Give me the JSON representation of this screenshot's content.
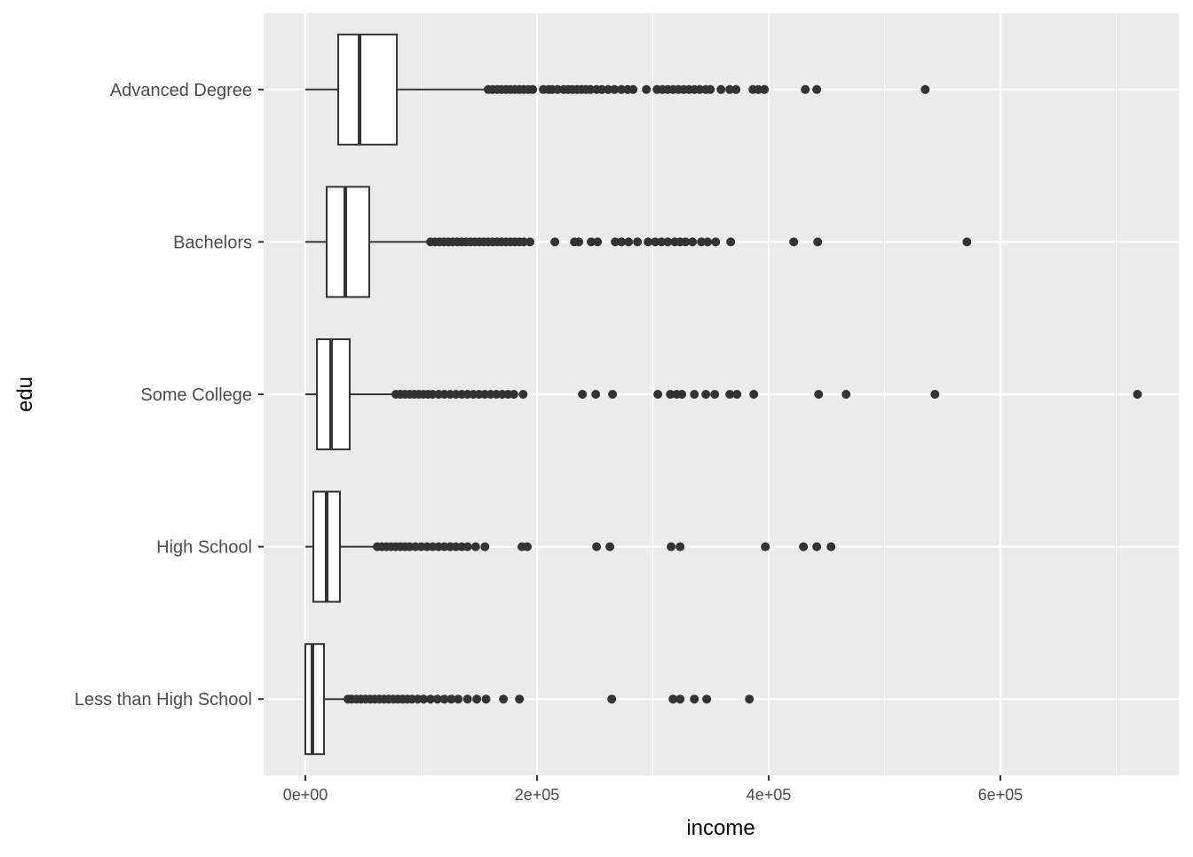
{
  "chart_data": {
    "type": "boxplot",
    "orientation": "horizontal",
    "xlabel": "income",
    "ylabel": "edu",
    "xlim": [
      -36000,
      754000
    ],
    "x_ticks": [
      0,
      200000,
      400000,
      600000
    ],
    "x_tick_labels": [
      "0e+00",
      "2e+05",
      "4e+05",
      "6e+05"
    ],
    "x_minor_ticks": [
      100000,
      300000,
      500000,
      700000
    ],
    "grid": true,
    "categories": [
      "Advanced Degree",
      "Bachelors",
      "Some College",
      "High School",
      "Less than High School"
    ],
    "boxes": [
      {
        "name": "Advanced Degree",
        "whisker_low": 0,
        "q1": 28400,
        "median": 46800,
        "q3": 79000,
        "whisker_high": 154800,
        "outliers": [
          157900,
          161700,
          165600,
          169400,
          173300,
          177100,
          180900,
          184800,
          188600,
          192500,
          196300,
          205400,
          210000,
          213100,
          217700,
          223100,
          226900,
          230700,
          234600,
          238400,
          242200,
          246100,
          251400,
          256000,
          261400,
          266800,
          272900,
          278300,
          282900,
          294400,
          303600,
          308200,
          312800,
          317400,
          322000,
          326600,
          331200,
          335800,
          340400,
          345700,
          349600,
          358800,
          366400,
          371800,
          386400,
          391000,
          396300,
          431600,
          441500,
          535100
        ]
      },
      {
        "name": "Bachelors",
        "whisker_low": 0,
        "q1": 18400,
        "median": 34500,
        "q3": 55200,
        "whisker_high": 108000,
        "outliers": [
          108100,
          111900,
          115800,
          119600,
          123400,
          127300,
          131100,
          134900,
          138800,
          142600,
          146400,
          150200,
          154100,
          157900,
          161700,
          165600,
          169400,
          173300,
          177100,
          180900,
          184800,
          188600,
          193900,
          215400,
          232300,
          236100,
          246800,
          252200,
          267500,
          272900,
          279000,
          286700,
          295900,
          302000,
          307400,
          312800,
          318900,
          323500,
          328100,
          334200,
          341900,
          347300,
          354200,
          367200,
          421600,
          442300,
          571100
        ]
      },
      {
        "name": "Some College",
        "whisker_low": 0,
        "q1": 10000,
        "median": 22200,
        "q3": 38300,
        "whisker_high": 78200,
        "outliers": [
          78200,
          82000,
          86000,
          90000,
          94000,
          98000,
          102000,
          106000,
          110000,
          115000,
          120000,
          125000,
          130000,
          135000,
          140000,
          145000,
          150000,
          155000,
          160000,
          165000,
          170000,
          175000,
          180000,
          188000,
          239200,
          250700,
          265200,
          304300,
          315100,
          320400,
          325000,
          335800,
          345700,
          353400,
          366400,
          372600,
          387100,
          443100,
          466800,
          543500,
          718300
        ]
      },
      {
        "name": "High School",
        "whisker_low": 0,
        "q1": 6900,
        "median": 18400,
        "q3": 29900,
        "whisker_high": 62100,
        "outliers": [
          62100,
          66000,
          70000,
          74000,
          78000,
          82000,
          86000,
          90000,
          95000,
          100000,
          105000,
          110000,
          115000,
          120000,
          125000,
          130000,
          135000,
          140000,
          147000,
          155000,
          187000,
          191600,
          251400,
          262900,
          315800,
          323500,
          397100,
          430000,
          441500,
          453800
        ]
      },
      {
        "name": "Less than High School",
        "whisker_low": 0,
        "q1": 0,
        "median": 6100,
        "q3": 16100,
        "whisker_high": 36800,
        "outliers": [
          36800,
          40000,
          44000,
          48000,
          52000,
          56000,
          60000,
          64000,
          68000,
          72000,
          76000,
          80000,
          84000,
          88000,
          92000,
          97000,
          102000,
          108000,
          114000,
          120000,
          126000,
          132000,
          140000,
          148000,
          156000,
          171000,
          184800,
          264500,
          317400,
          323500,
          335800,
          346500,
          383300
        ]
      }
    ]
  },
  "colors": {
    "panel": "#EBEBEB",
    "grid": "#FFFFFF",
    "point": "#333333",
    "box_fill": "#FFFFFF",
    "box_line": "#333333"
  }
}
